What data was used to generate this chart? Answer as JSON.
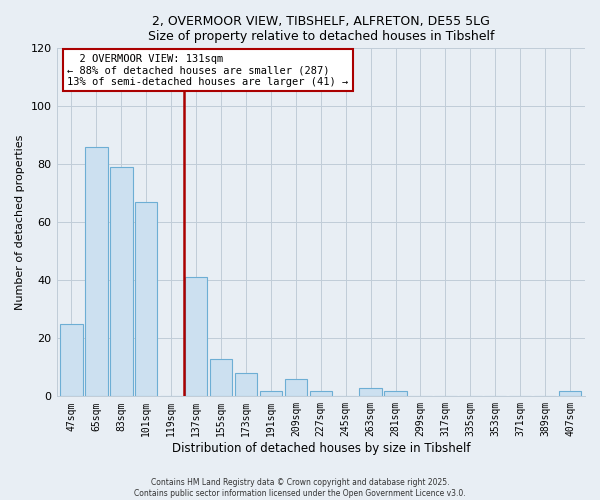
{
  "title": "2, OVERMOOR VIEW, TIBSHELF, ALFRETON, DE55 5LG",
  "subtitle": "Size of property relative to detached houses in Tibshelf",
  "xlabel": "Distribution of detached houses by size in Tibshelf",
  "ylabel": "Number of detached properties",
  "categories": [
    "47sqm",
    "65sqm",
    "83sqm",
    "101sqm",
    "119sqm",
    "137sqm",
    "155sqm",
    "173sqm",
    "191sqm",
    "209sqm",
    "227sqm",
    "245sqm",
    "263sqm",
    "281sqm",
    "299sqm",
    "317sqm",
    "335sqm",
    "353sqm",
    "371sqm",
    "389sqm",
    "407sqm"
  ],
  "values": [
    25,
    86,
    79,
    67,
    0,
    41,
    13,
    8,
    2,
    6,
    2,
    0,
    3,
    2,
    0,
    0,
    0,
    0,
    0,
    0,
    2
  ],
  "bar_color": "#cce0f0",
  "bar_edge_color": "#6daed4",
  "highlight_line_color": "#aa0000",
  "annotation_title": "2 OVERMOOR VIEW: 131sqm",
  "annotation_line1": "← 88% of detached houses are smaller (287)",
  "annotation_line2": "13% of semi-detached houses are larger (41) →",
  "annotation_box_color": "#ffffff",
  "annotation_box_edge": "#aa0000",
  "ylim": [
    0,
    120
  ],
  "yticks": [
    0,
    20,
    40,
    60,
    80,
    100,
    120
  ],
  "footer1": "Contains HM Land Registry data © Crown copyright and database right 2025.",
  "footer2": "Contains public sector information licensed under the Open Government Licence v3.0.",
  "bg_color": "#e8eef4",
  "plot_bg_color": "#e8eef4",
  "grid_color": "#c0ccd8"
}
